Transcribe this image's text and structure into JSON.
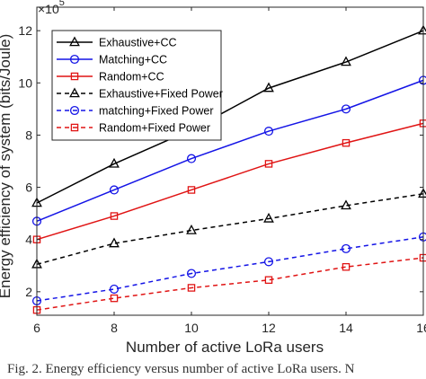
{
  "chart_data": {
    "type": "line",
    "xlabel": "Number of active LoRa users",
    "ylabel": "Energy efficiency of system (bits/Joule)",
    "y_multiplier": "×10",
    "y_exponent": "5",
    "x": [
      6,
      8,
      10,
      12,
      14,
      16
    ],
    "xlim": [
      6,
      16
    ],
    "ylim": [
      1.1,
      12.9
    ],
    "x_ticks": [
      6,
      8,
      10,
      12,
      14,
      16
    ],
    "y_ticks": [
      2,
      4,
      6,
      8,
      10,
      12
    ],
    "grid": false,
    "legend_position": "top-left",
    "series": [
      {
        "name": "Exhaustive+CC",
        "values": [
          5.4,
          6.9,
          8.2,
          9.8,
          10.8,
          12.0
        ],
        "color": "#000000",
        "dash": "solid",
        "marker": "triangle"
      },
      {
        "name": "Matching+CC",
        "values": [
          4.7,
          5.9,
          7.1,
          8.15,
          9.0,
          10.1
        ],
        "color": "#1414e6",
        "dash": "solid",
        "marker": "circle"
      },
      {
        "name": "Random+CC",
        "values": [
          4.0,
          4.9,
          5.9,
          6.9,
          7.7,
          8.45
        ],
        "color": "#e01414",
        "dash": "solid",
        "marker": "square"
      },
      {
        "name": "Exhaustive+Fixed Power",
        "values": [
          3.05,
          3.85,
          4.35,
          4.8,
          5.3,
          5.75
        ],
        "color": "#000000",
        "dash": "dashed",
        "marker": "triangle"
      },
      {
        "name": "matching+Fixed Power",
        "values": [
          1.65,
          2.1,
          2.7,
          3.15,
          3.65,
          4.1
        ],
        "color": "#1414e6",
        "dash": "dashed",
        "marker": "circle"
      },
      {
        "name": "Random+Fixed Power",
        "values": [
          1.3,
          1.75,
          2.15,
          2.45,
          2.95,
          3.3
        ],
        "color": "#e01414",
        "dash": "dashed",
        "marker": "square"
      }
    ]
  },
  "caption": "Fig. 2.   Energy efficiency versus number of active LoRa users. N"
}
